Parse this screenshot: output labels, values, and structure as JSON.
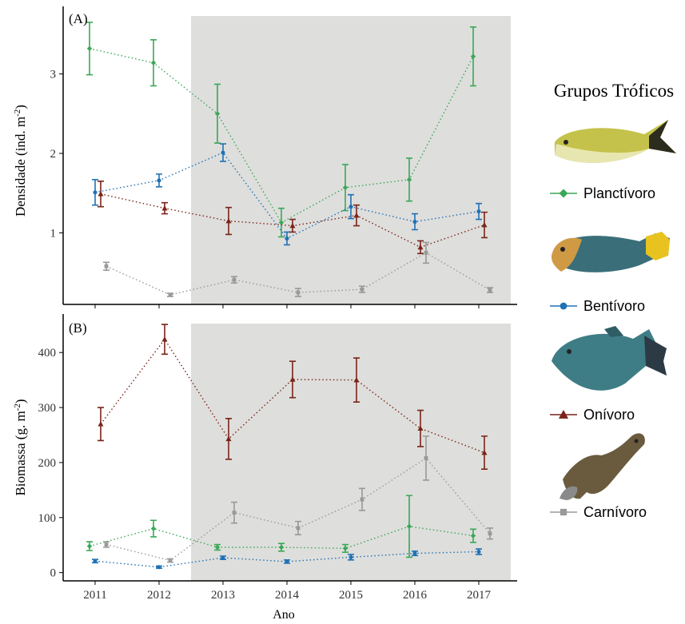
{
  "chart_data": [
    {
      "type": "line",
      "panel_label": "(A)",
      "ylabel": "Densidade (ind. m",
      "ylabel_sup": "-2",
      "ylabel_end": ")",
      "x": [
        2011,
        2012,
        2013,
        2014,
        2015,
        2016,
        2017
      ],
      "ylim": [
        0.1,
        3.85
      ],
      "yticks": [
        1,
        2,
        3
      ],
      "shaded_x_range": [
        2012.5,
        2017.5
      ],
      "series": [
        {
          "name": "Planctívoro",
          "color": "#3aa856",
          "marker": "diamond",
          "values": [
            3.32,
            3.14,
            2.5,
            1.13,
            1.57,
            1.67,
            3.22
          ],
          "err": [
            0.33,
            0.29,
            0.37,
            0.18,
            0.29,
            0.27,
            0.37
          ]
        },
        {
          "name": "Bentívoro",
          "color": "#2171b5",
          "marker": "circle",
          "values": [
            1.51,
            1.66,
            2.01,
            0.93,
            1.33,
            1.14,
            1.27
          ],
          "err": [
            0.16,
            0.08,
            0.11,
            0.08,
            0.15,
            0.1,
            0.1
          ]
        },
        {
          "name": "Onívoro",
          "color": "#7a2418",
          "marker": "triangle",
          "values": [
            1.49,
            1.31,
            1.15,
            1.09,
            1.22,
            0.82,
            1.1
          ],
          "err": [
            0.16,
            0.07,
            0.17,
            0.08,
            0.13,
            0.08,
            0.16
          ]
        },
        {
          "name": "Carnívoro",
          "color": "#999999",
          "marker": "square",
          "values": [
            0.58,
            0.22,
            0.41,
            0.25,
            0.29,
            0.75,
            0.28
          ],
          "err": [
            0.05,
            0.02,
            0.04,
            0.05,
            0.04,
            0.13,
            0.03
          ]
        }
      ]
    },
    {
      "type": "line",
      "panel_label": "(B)",
      "ylabel": "Biomassa (g. m",
      "ylabel_sup": "-2",
      "ylabel_end": ")",
      "xlabel": "Ano",
      "x": [
        2011,
        2012,
        2013,
        2014,
        2015,
        2016,
        2017
      ],
      "ylim": [
        -15,
        470
      ],
      "yticks": [
        0,
        100,
        200,
        300,
        400
      ],
      "shaded_x_range": [
        2012.5,
        2017.5
      ],
      "series": [
        {
          "name": "Planctívoro",
          "color": "#3aa856",
          "marker": "diamond",
          "values": [
            48,
            80,
            46,
            46,
            44,
            84,
            67
          ],
          "err": [
            8,
            15,
            5,
            7,
            7,
            56,
            12
          ]
        },
        {
          "name": "Bentívoro",
          "color": "#2171b5",
          "marker": "circle",
          "values": [
            21,
            10,
            27,
            20,
            28,
            35,
            38
          ],
          "err": [
            3,
            2,
            3,
            3,
            5,
            4,
            5
          ]
        },
        {
          "name": "Onívoro",
          "color": "#7a2418",
          "marker": "triangle",
          "values": [
            270,
            424,
            243,
            351,
            350,
            262,
            218
          ],
          "err": [
            30,
            27,
            37,
            33,
            40,
            33,
            30
          ]
        },
        {
          "name": "Carnívoro",
          "color": "#999999",
          "marker": "square",
          "values": [
            51,
            22,
            109,
            81,
            133,
            208,
            71
          ],
          "err": [
            5,
            3,
            19,
            12,
            20,
            40,
            10
          ]
        }
      ]
    }
  ],
  "legend": {
    "title": "Grupos Tróficos",
    "items": [
      {
        "label": "Planctívoro",
        "color": "#3aa856",
        "marker": "diamond",
        "icon": "damselfish-image"
      },
      {
        "label": "Bentívoro",
        "color": "#2171b5",
        "marker": "circle",
        "icon": "parrotfish-image"
      },
      {
        "label": "Onívoro",
        "color": "#7a2418",
        "marker": "triangle",
        "icon": "triggerfish-image"
      },
      {
        "label": "Carnívoro",
        "color": "#999999",
        "marker": "square",
        "icon": "moray-eel-image"
      }
    ]
  },
  "colors": {
    "shade": "#dededc",
    "axis": "#000000"
  }
}
